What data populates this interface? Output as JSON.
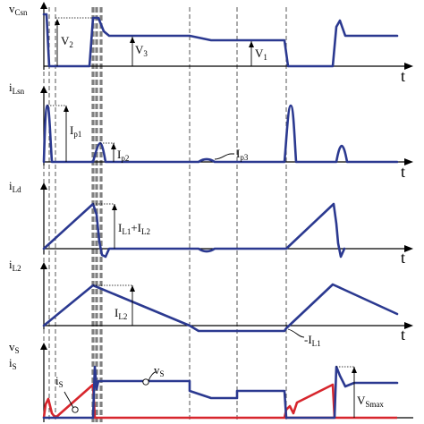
{
  "time_axis_label": "t",
  "panels": [
    {
      "id": "vcsn",
      "ylabel_main": "v",
      "ylabel_sub": "Csn",
      "annotations": [
        {
          "main": "V",
          "sub": "2"
        },
        {
          "main": "V",
          "sub": "3"
        },
        {
          "main": "V",
          "sub": "1"
        }
      ]
    },
    {
      "id": "ilsn",
      "ylabel_main": "i",
      "ylabel_sub": "Lsn",
      "annotations": [
        {
          "main": "I",
          "sub": "p1"
        },
        {
          "main": "I",
          "sub": "p2"
        },
        {
          "main": "I",
          "sub": "p3"
        }
      ]
    },
    {
      "id": "ild",
      "ylabel_main": "i",
      "ylabel_sub": "Ld",
      "annotations": [
        {
          "main": "I",
          "sub": "L1",
          "rest": "+I",
          "sub2": "L2"
        }
      ]
    },
    {
      "id": "il2",
      "ylabel_main": "i",
      "ylabel_sub": "L2",
      "annotations": [
        {
          "main": "I",
          "sub": "L2"
        },
        {
          "main": "-I",
          "sub": "L1"
        }
      ]
    },
    {
      "id": "vs",
      "ylabel_main": "v",
      "ylabel_sub": "S",
      "ylabel2_main": "i",
      "ylabel2_sub": "S",
      "annotations": [
        {
          "main": "i",
          "sub": "S"
        },
        {
          "main": "v",
          "sub": "S"
        },
        {
          "main": "V",
          "sub": "Smax"
        }
      ]
    }
  ],
  "colors": {
    "voltage_current": "#2b3990",
    "switch_current": "#d7262d"
  }
}
